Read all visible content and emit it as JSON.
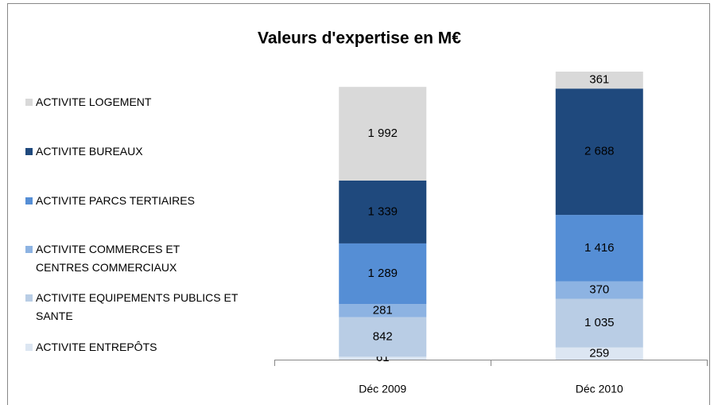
{
  "chart_data": {
    "type": "stacked_bar",
    "title": "Valeurs d'expertise en M€",
    "categories": [
      "Déc 2009",
      "Déc 2010"
    ],
    "series": [
      {
        "name": "ACTIVITE ENTREPÔTS",
        "color": "#dce6f2",
        "values": [
          61,
          259
        ],
        "value_labels": [
          "61",
          "259"
        ]
      },
      {
        "name": "ACTIVITE EQUIPEMENTS PUBLICS ET SANTE",
        "color": "#b9cde5",
        "values": [
          842,
          1035
        ],
        "value_labels": [
          "842",
          "1 035"
        ]
      },
      {
        "name": "ACTIVITE COMMERCES ET CENTRES COMMERCIAUX",
        "color": "#8db3e2",
        "values": [
          281,
          370
        ],
        "value_labels": [
          "281",
          "370"
        ]
      },
      {
        "name": "ACTIVITE PARCS TERTIAIRES",
        "color": "#558ed5",
        "values": [
          1289,
          1416
        ],
        "value_labels": [
          "1 289",
          "1 416"
        ]
      },
      {
        "name": "ACTIVITE BUREAUX",
        "color": "#1f497d",
        "values": [
          1339,
          2688
        ],
        "value_labels": [
          "1 339",
          "2 688"
        ]
      },
      {
        "name": "ACTIVITE LOGEMENT",
        "color": "#d9d9d9",
        "values": [
          1992,
          361
        ],
        "value_labels": [
          "1 992",
          "361"
        ]
      }
    ]
  }
}
